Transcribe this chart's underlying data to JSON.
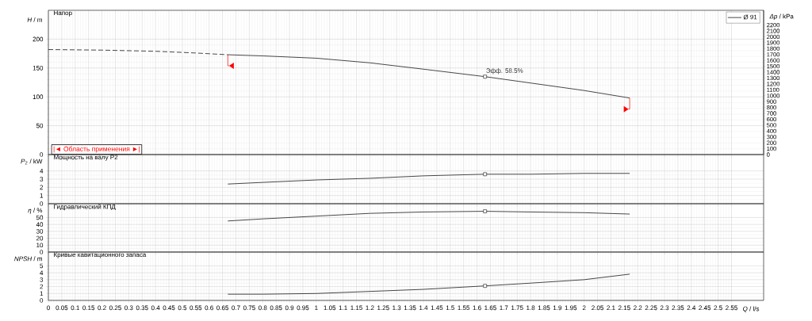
{
  "chart_data": [
    {
      "type": "line",
      "title": "Напор",
      "ylabel": "*H* / m",
      "y2label": "*Δp* / kPa",
      "xlim": [
        0,
        2.67
      ],
      "ylim": [
        0,
        250
      ],
      "y2lim": [
        0,
        2450
      ],
      "xticks": [
        0,
        0.05,
        0.1,
        0.15,
        0.2,
        0.25,
        0.3,
        0.35,
        0.4,
        0.45,
        0.5,
        0.55,
        0.6,
        0.65,
        0.7,
        0.75,
        0.8,
        0.85,
        0.9,
        0.95,
        1,
        1.05,
        1.1,
        1.15,
        1.2,
        1.25,
        1.3,
        1.35,
        1.4,
        1.45,
        1.5,
        1.55,
        1.6,
        1.65,
        1.7,
        1.75,
        1.8,
        1.85,
        1.9,
        1.95,
        2,
        2.05,
        2.1,
        2.15,
        2.2,
        2.25,
        2.3,
        2.35,
        2.4,
        2.45,
        2.5,
        2.55
      ],
      "yticks": [
        0,
        50,
        100,
        150,
        200
      ],
      "y2ticks": [
        0,
        100,
        200,
        300,
        400,
        500,
        600,
        700,
        800,
        900,
        1000,
        1100,
        1200,
        1300,
        1400,
        1500,
        1600,
        1700,
        1800,
        1900,
        2000,
        2100,
        2200
      ],
      "grid": true,
      "legend": "top right",
      "tick_labels": "y",
      "series": [
        {
          "type": "line",
          "line_style": "dashed",
          "color": "#333333",
          "x": [
            0,
            0.2,
            0.4,
            0.55,
            0.67
          ],
          "values": [
            182,
            181,
            179,
            176,
            173
          ]
        },
        {
          "type": "line",
          "line_style": "solid",
          "name": "Ø 91",
          "color": "#333333",
          "x": [
            0.67,
            0.8,
            1.0,
            1.2,
            1.4,
            1.63,
            1.8,
            2.0,
            2.17
          ],
          "values": [
            173,
            171,
            167,
            159,
            148,
            135,
            124,
            111,
            98
          ]
        },
        {
          "type": "scatter",
          "marker": "square",
          "color": "#333333",
          "x": [
            1.63
          ],
          "values": [
            135
          ]
        }
      ],
      "annotations": [
        {
          "text": "Эфф. 58.5%",
          "x": 1.63,
          "y": 135
        },
        "|◄ Область применения ►|"
      ]
    },
    {
      "type": "line",
      "title": "Мощность на валу P2",
      "ylabel": "*P*$_{2}$ / kW",
      "xlim": [
        0,
        2.67
      ],
      "ylim": [
        0,
        6
      ],
      "xticks": [
        0,
        0.05,
        0.1,
        0.15,
        0.2,
        0.25,
        0.3,
        0.35,
        0.4,
        0.45,
        0.5,
        0.55,
        0.6,
        0.65,
        0.7,
        0.75,
        0.8,
        0.85,
        0.9,
        0.95,
        1,
        1.05,
        1.1,
        1.15,
        1.2,
        1.25,
        1.3,
        1.35,
        1.4,
        1.45,
        1.5,
        1.55,
        1.6,
        1.65,
        1.7,
        1.75,
        1.8,
        1.85,
        1.9,
        1.95,
        2,
        2.05,
        2.1,
        2.15,
        2.2,
        2.25,
        2.3,
        2.35,
        2.4,
        2.45,
        2.5,
        2.55
      ],
      "yticks": [
        0,
        1,
        2,
        3,
        4
      ],
      "grid": true,
      "tick_labels": "y",
      "series": [
        {
          "type": "line",
          "line_style": "solid",
          "color": "#333333",
          "x": [
            0.67,
            0.8,
            1.0,
            1.2,
            1.4,
            1.63,
            1.8,
            2.0,
            2.17
          ],
          "values": [
            2.4,
            2.6,
            2.9,
            3.1,
            3.4,
            3.6,
            3.6,
            3.7,
            3.7
          ]
        },
        {
          "type": "scatter",
          "marker": "square",
          "color": "#333333",
          "x": [
            1.63
          ],
          "values": [
            3.6
          ]
        }
      ]
    },
    {
      "type": "line",
      "title": "Гидравлический КПД",
      "ylabel": "*η* / %",
      "xlim": [
        0,
        2.67
      ],
      "ylim": [
        0,
        70
      ],
      "xticks": [
        0,
        0.05,
        0.1,
        0.15,
        0.2,
        0.25,
        0.3,
        0.35,
        0.4,
        0.45,
        0.5,
        0.55,
        0.6,
        0.65,
        0.7,
        0.75,
        0.8,
        0.85,
        0.9,
        0.95,
        1,
        1.05,
        1.1,
        1.15,
        1.2,
        1.25,
        1.3,
        1.35,
        1.4,
        1.45,
        1.5,
        1.55,
        1.6,
        1.65,
        1.7,
        1.75,
        1.8,
        1.85,
        1.9,
        1.95,
        2,
        2.05,
        2.1,
        2.15,
        2.2,
        2.25,
        2.3,
        2.35,
        2.4,
        2.45,
        2.5,
        2.55
      ],
      "yticks": [
        0,
        10,
        20,
        30,
        40,
        50
      ],
      "grid": true,
      "tick_labels": "y",
      "series": [
        {
          "type": "line",
          "line_style": "solid",
          "color": "#333333",
          "x": [
            0.67,
            0.8,
            1.0,
            1.2,
            1.4,
            1.63,
            1.8,
            2.0,
            2.17
          ],
          "values": [
            45,
            48,
            52,
            56,
            58,
            59,
            58,
            57,
            55
          ]
        },
        {
          "type": "scatter",
          "marker": "square",
          "color": "#333333",
          "x": [
            1.63
          ],
          "values": [
            59
          ]
        }
      ]
    },
    {
      "type": "line",
      "title": "Кривые кавитационного запаса",
      "ylabel": "*NPSH* / m",
      "xlabel": "*Q* / l/s",
      "xlim": [
        0,
        2.67
      ],
      "ylim": [
        0,
        7
      ],
      "xticks": [
        0,
        0.05,
        0.1,
        0.15,
        0.2,
        0.25,
        0.3,
        0.35,
        0.4,
        0.45,
        0.5,
        0.55,
        0.6,
        0.65,
        0.7,
        0.75,
        0.8,
        0.85,
        0.9,
        0.95,
        1,
        1.05,
        1.1,
        1.15,
        1.2,
        1.25,
        1.3,
        1.35,
        1.4,
        1.45,
        1.5,
        1.55,
        1.6,
        1.65,
        1.7,
        1.75,
        1.8,
        1.85,
        1.9,
        1.95,
        2,
        2.05,
        2.1,
        2.15,
        2.2,
        2.25,
        2.3,
        2.35,
        2.4,
        2.45,
        2.5,
        2.55
      ],
      "yticks": [
        0,
        1,
        2,
        3,
        4,
        5
      ],
      "grid": true,
      "series": [
        {
          "type": "line",
          "line_style": "solid",
          "color": "#333333",
          "x": [
            0.67,
            0.8,
            1.0,
            1.2,
            1.4,
            1.63,
            1.8,
            2.0,
            2.17
          ],
          "values": [
            0.9,
            0.9,
            1.0,
            1.3,
            1.6,
            2.1,
            2.5,
            3.0,
            3.8
          ]
        },
        {
          "type": "scatter",
          "marker": "square",
          "color": "#333333",
          "x": [
            1.63
          ],
          "values": [
            2.1
          ]
        }
      ]
    }
  ]
}
